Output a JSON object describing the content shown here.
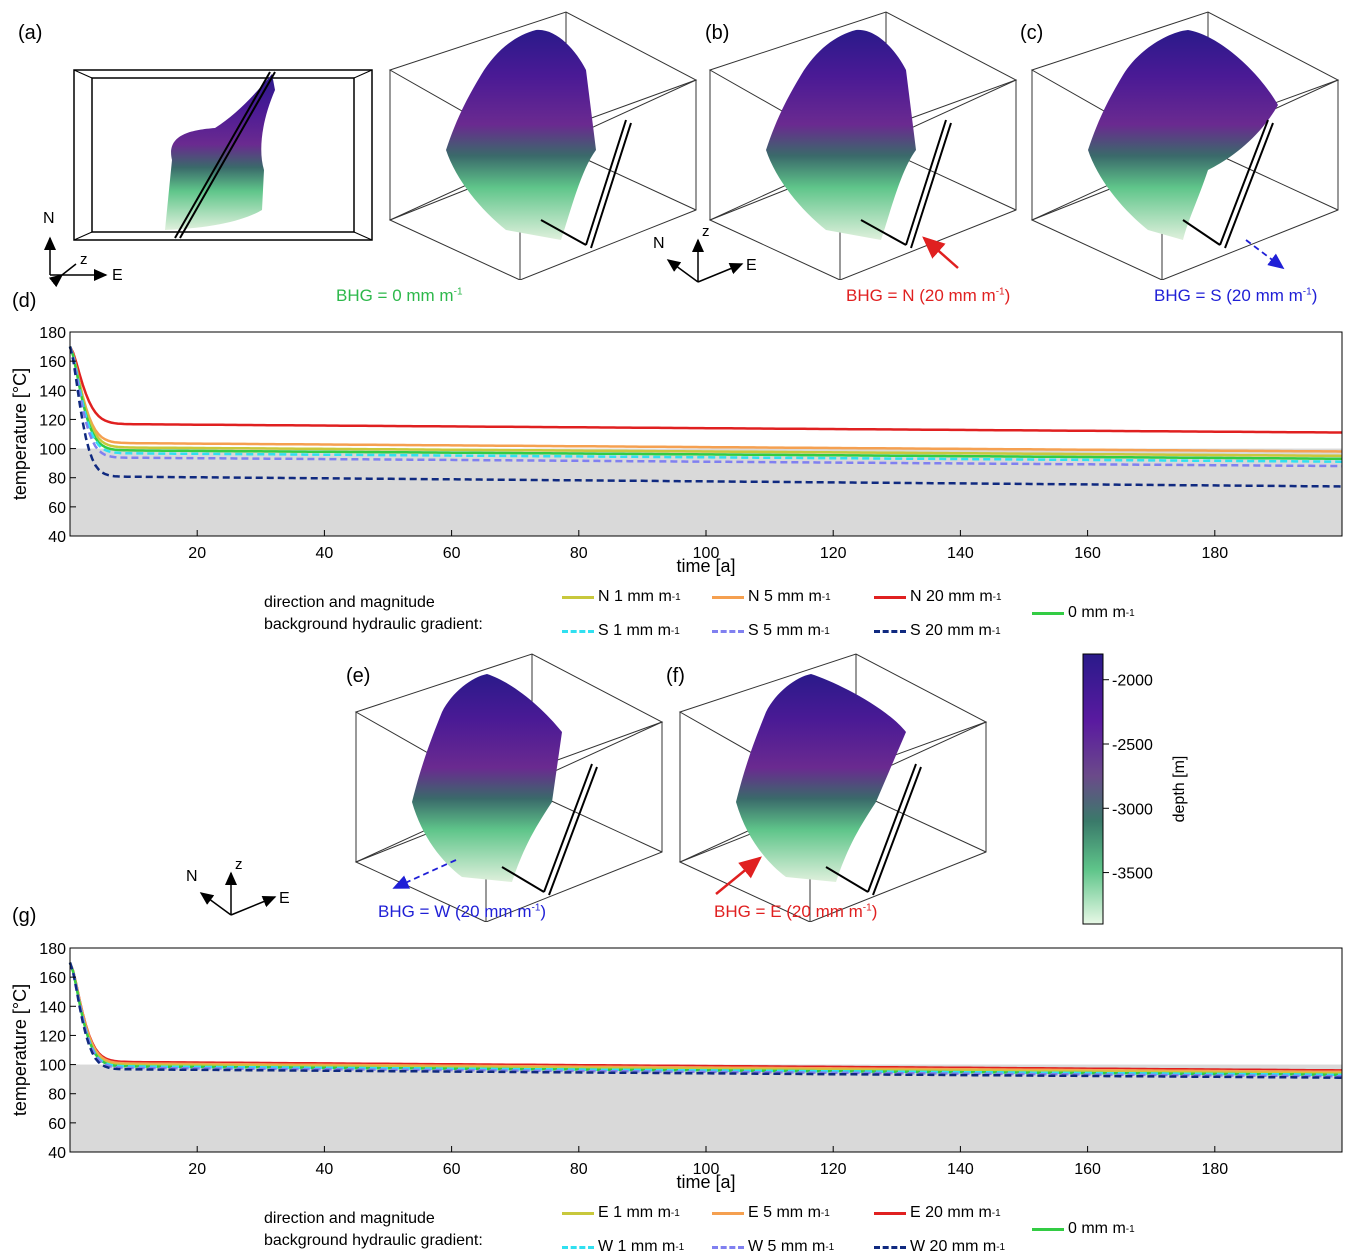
{
  "panels": {
    "a": "(a)",
    "b": "(b)",
    "c": "(c)",
    "d": "(d)",
    "e": "(e)",
    "f": "(f)",
    "g": "(g)"
  },
  "bhg_labels": {
    "zero": {
      "text": "BHG = 0 mm m",
      "sup": "-1",
      "color": "#2db84b"
    },
    "north": {
      "text": "BHG = N (20 mm m",
      "sup": "-1",
      "tail": ")",
      "color": "#e02020"
    },
    "south": {
      "text": "BHG = S (20 mm m",
      "sup": "-1",
      "tail": ")",
      "color": "#1f1fd6"
    },
    "west": {
      "text": "BHG = W (20 mm m",
      "sup": "-1",
      "tail": ")",
      "color": "#1f1fd6"
    },
    "east": {
      "text": "BHG = E (20 mm m",
      "sup": "-1",
      "tail": ")",
      "color": "#e02020"
    }
  },
  "axes_glyphs": {
    "n": "N",
    "z": "z",
    "e": "E"
  },
  "colorbar": {
    "title": "depth [m]",
    "ticks": [
      "-2000",
      "-2500",
      "-3000",
      "-3500"
    ],
    "colors_top_to_bottom": [
      "#2a1a8a",
      "#5a1aa0",
      "#6b4a8a",
      "#3a7a6a",
      "#5fc58a",
      "#e8f8e6"
    ]
  },
  "legend_title_1": "direction and magnitude",
  "legend_title_2": "background hydraulic gradient:",
  "legend_d": {
    "items": [
      {
        "label": "N 1 mm m",
        "sup": "-1",
        "color": "#c8c83c",
        "dash": "solid"
      },
      {
        "label": "N 5 mm m",
        "sup": "-1",
        "color": "#f5a050",
        "dash": "solid"
      },
      {
        "label": "N 20 mm m",
        "sup": "-1",
        "color": "#e02020",
        "dash": "solid"
      },
      {
        "label": "S 1 mm m",
        "sup": "-1",
        "color": "#30e0f0",
        "dash": "dashed"
      },
      {
        "label": "S 5 mm m",
        "sup": "-1",
        "color": "#8080f0",
        "dash": "dashed"
      },
      {
        "label": "S 20 mm m",
        "sup": "-1",
        "color": "#102a80",
        "dash": "dashed"
      },
      {
        "label": "0 mm m",
        "sup": "-1",
        "color": "#33cc44",
        "dash": "solid"
      }
    ]
  },
  "legend_g": {
    "items": [
      {
        "label": "E 1 mm m",
        "sup": "-1",
        "color": "#c8c83c",
        "dash": "solid"
      },
      {
        "label": "E 5 mm m",
        "sup": "-1",
        "color": "#f5a050",
        "dash": "solid"
      },
      {
        "label": "E 20 mm m",
        "sup": "-1",
        "color": "#e02020",
        "dash": "solid"
      },
      {
        "label": "W 1 mm m",
        "sup": "-1",
        "color": "#30e0f0",
        "dash": "dashed"
      },
      {
        "label": "W 5 mm m",
        "sup": "-1",
        "color": "#8080f0",
        "dash": "dashed"
      },
      {
        "label": "W 20 mm m",
        "sup": "-1",
        "color": "#102a80",
        "dash": "dashed"
      },
      {
        "label": "0 mm m",
        "sup": "-1",
        "color": "#33cc44",
        "dash": "solid"
      }
    ]
  },
  "chart_data": [
    {
      "type": "line",
      "panel": "(d)",
      "xlabel": "time [a]",
      "ylabel": "temperature [°C]",
      "xlim": [
        0,
        200
      ],
      "ylim": [
        40,
        180
      ],
      "xticks": [
        20,
        40,
        60,
        80,
        100,
        120,
        140,
        160,
        180
      ],
      "yticks": [
        40,
        60,
        80,
        100,
        120,
        140,
        160,
        180
      ],
      "shaded_below": 100,
      "shade_color": "#d9d9d9",
      "series": [
        {
          "name": "N 20 mm m-1",
          "color": "#e02020",
          "dash": "solid",
          "start": 170,
          "plateau": 117,
          "final": 111,
          "tau": 2.6
        },
        {
          "name": "N 5 mm m-1",
          "color": "#f5a050",
          "dash": "solid",
          "start": 170,
          "plateau": 104,
          "final": 98,
          "tau": 2.5
        },
        {
          "name": "N 1 mm m-1",
          "color": "#c8c83c",
          "dash": "solid",
          "start": 170,
          "plateau": 101,
          "final": 95,
          "tau": 2.5
        },
        {
          "name": "0 mm m-1",
          "color": "#33cc44",
          "dash": "solid",
          "start": 170,
          "plateau": 99,
          "final": 93,
          "tau": 2.4
        },
        {
          "name": "S 1 mm m-1",
          "color": "#30e0f0",
          "dash": "dashed",
          "start": 170,
          "plateau": 97,
          "final": 91,
          "tau": 2.4
        },
        {
          "name": "S 5 mm m-1",
          "color": "#8080f0",
          "dash": "dashed",
          "start": 170,
          "plateau": 94,
          "final": 88,
          "tau": 2.3
        },
        {
          "name": "S 20 mm m-1",
          "color": "#102a80",
          "dash": "dashed",
          "start": 170,
          "plateau": 81,
          "final": 74,
          "tau": 2.2
        }
      ]
    },
    {
      "type": "line",
      "panel": "(g)",
      "xlabel": "time [a]",
      "ylabel": "temperature [°C]",
      "xlim": [
        0,
        200
      ],
      "ylim": [
        40,
        180
      ],
      "xticks": [
        20,
        40,
        60,
        80,
        100,
        120,
        140,
        160,
        180
      ],
      "yticks": [
        40,
        60,
        80,
        100,
        120,
        140,
        160,
        180
      ],
      "shaded_below": 100,
      "shade_color": "#d9d9d9",
      "series": [
        {
          "name": "E 20 mm m-1",
          "color": "#e02020",
          "dash": "solid",
          "start": 170,
          "plateau": 102,
          "final": 96,
          "tau": 2.5
        },
        {
          "name": "E 5 mm m-1",
          "color": "#f5a050",
          "dash": "solid",
          "start": 170,
          "plateau": 101,
          "final": 95,
          "tau": 2.5
        },
        {
          "name": "E 1 mm m-1",
          "color": "#c8c83c",
          "dash": "solid",
          "start": 170,
          "plateau": 100,
          "final": 94,
          "tau": 2.4
        },
        {
          "name": "0 mm m-1",
          "color": "#33cc44",
          "dash": "solid",
          "start": 170,
          "plateau": 99,
          "final": 93,
          "tau": 2.4
        },
        {
          "name": "W 1 mm m-1",
          "color": "#30e0f0",
          "dash": "dashed",
          "start": 170,
          "plateau": 99,
          "final": 93,
          "tau": 2.4
        },
        {
          "name": "W 5 mm m-1",
          "color": "#8080f0",
          "dash": "dashed",
          "start": 170,
          "plateau": 98,
          "final": 92,
          "tau": 2.4
        },
        {
          "name": "W 20 mm m-1",
          "color": "#102a80",
          "dash": "dashed",
          "start": 170,
          "plateau": 97,
          "final": 91,
          "tau": 2.3
        }
      ]
    }
  ]
}
